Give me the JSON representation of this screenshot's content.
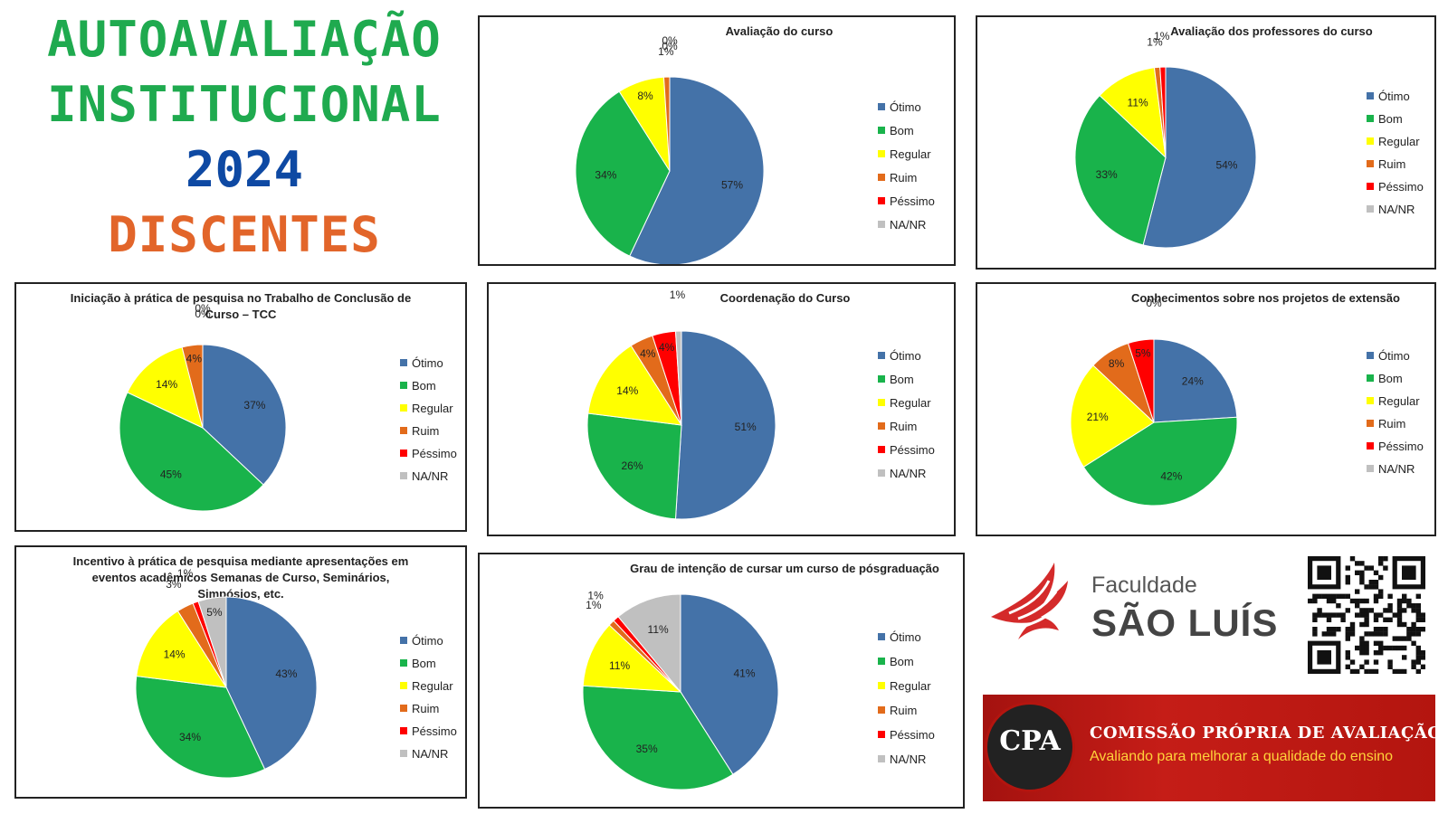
{
  "header": {
    "line1": "AUTOAVALIAÇÃO",
    "line2": "INSTITUCIONAL",
    "year": "2024",
    "audience": "DISCENTES"
  },
  "colors": {
    "otimo": "#4472a8",
    "bom": "#19b34b",
    "regular": "#ffff00",
    "ruim": "#e26b1b",
    "pessimo": "#ff0000",
    "na": "#c0c0c0"
  },
  "chart_data": [
    {
      "type": "pie",
      "title": [
        "Avaliação do curso"
      ],
      "categories": [
        "Ótimo",
        "Bom",
        "Regular",
        "Ruim",
        "Péssimo",
        "NA/NR"
      ],
      "values": [
        57,
        34,
        8,
        1,
        0,
        0
      ],
      "legend": "right"
    },
    {
      "type": "pie",
      "title": [
        "Avaliação dos professores do curso"
      ],
      "categories": [
        "Ótimo",
        "Bom",
        "Regular",
        "Ruim",
        "Péssimo",
        "NA/NR"
      ],
      "values": [
        54,
        33,
        11,
        1,
        1,
        0
      ],
      "value_labels": [
        "54%",
        "33%",
        "11%",
        "1%",
        "1%",
        ""
      ],
      "legend": "right"
    },
    {
      "type": "pie",
      "title": [
        "Iniciação à prática de pesquisa no Trabalho de Conclusão de",
        "Curso – TCC"
      ],
      "categories": [
        "Ótimo",
        "Bom",
        "Regular",
        "Ruim",
        "Péssimo",
        "NA/NR"
      ],
      "values": [
        37,
        45,
        14,
        4,
        0,
        0
      ],
      "legend": "right"
    },
    {
      "type": "pie",
      "title": [
        "Coordenação do Curso"
      ],
      "categories": [
        "Ótimo",
        "Bom",
        "Regular",
        "Ruim",
        "Péssimo",
        "NA/NR"
      ],
      "values": [
        51,
        26,
        14,
        4,
        4,
        1
      ],
      "legend": "right"
    },
    {
      "type": "pie",
      "title": [
        "Conhecimentos sobre nos projetos de extensão"
      ],
      "categories": [
        "Ótimo",
        "Bom",
        "Regular",
        "Ruim",
        "Péssimo",
        "NA/NR"
      ],
      "values": [
        24,
        42,
        21,
        8,
        5,
        0
      ],
      "legend": "right"
    },
    {
      "type": "pie",
      "title": [
        "Incentivo à prática de pesquisa mediante apresentações em",
        "eventos acadêmicos Semanas de Curso, Seminários,",
        "Simpósios, etc."
      ],
      "categories": [
        "Ótimo",
        "Bom",
        "Regular",
        "Ruim",
        "Péssimo",
        "NA/NR"
      ],
      "values": [
        43,
        34,
        14,
        3,
        1,
        5
      ],
      "legend": "right"
    },
    {
      "type": "pie",
      "title": [
        "Grau de intenção de cursar um curso de pósgraduação"
      ],
      "categories": [
        "Ótimo",
        "Bom",
        "Regular",
        "Ruim",
        "Péssimo",
        "NA/NR"
      ],
      "values": [
        41,
        35,
        11,
        1,
        1,
        11
      ],
      "legend": "right"
    }
  ],
  "logo": {
    "line1": "Faculdade",
    "line2": "SÃO LUÍS"
  },
  "cpa": {
    "acronym": "CPA",
    "name": "COMISSÃO PRÓPRIA DE AVALIAÇÃO",
    "tagline": "Avaliando para melhorar a qualidade do ensino"
  }
}
